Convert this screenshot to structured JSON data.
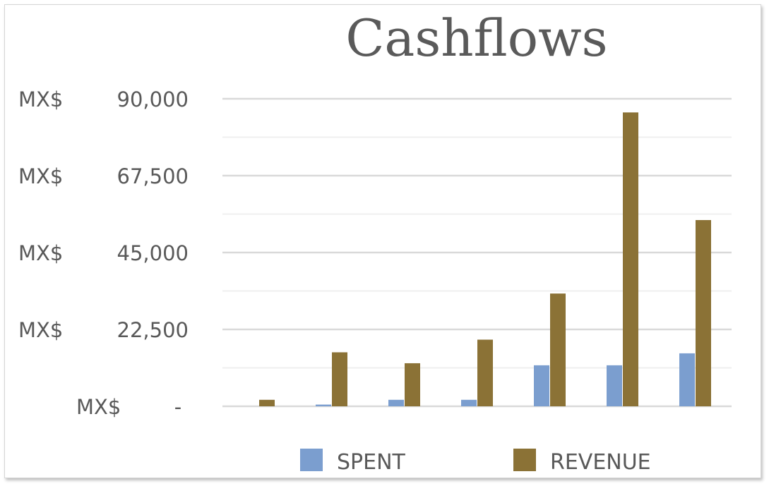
{
  "chart_data": {
    "type": "bar",
    "title": "Cashflows",
    "xlabel": "",
    "ylabel": "",
    "categories": [
      "",
      "",
      "",
      "",
      "",
      "",
      ""
    ],
    "series": [
      {
        "name": "SPENT",
        "color": "#7b9ecf",
        "values": [
          0,
          500,
          1900,
          1900,
          12000,
          12000,
          15500
        ]
      },
      {
        "name": "REVENUE",
        "color": "#8b7236",
        "values": [
          1900,
          15800,
          12600,
          19500,
          33000,
          86000,
          54500
        ]
      }
    ],
    "ylim": [
      0,
      90000
    ],
    "yticks": [
      {
        "value": 0,
        "currency": "MX$",
        "label": "-"
      },
      {
        "value": 22500,
        "currency": "MX$",
        "label": "22,500"
      },
      {
        "value": 45000,
        "currency": "MX$",
        "label": "45,000"
      },
      {
        "value": 67500,
        "currency": "MX$",
        "label": "67,500"
      },
      {
        "value": 90000,
        "currency": "MX$",
        "label": "90,000"
      }
    ],
    "minor_gridlines": [
      11250,
      33750,
      56250,
      78750
    ],
    "grid": true,
    "legend_position": "bottom"
  }
}
